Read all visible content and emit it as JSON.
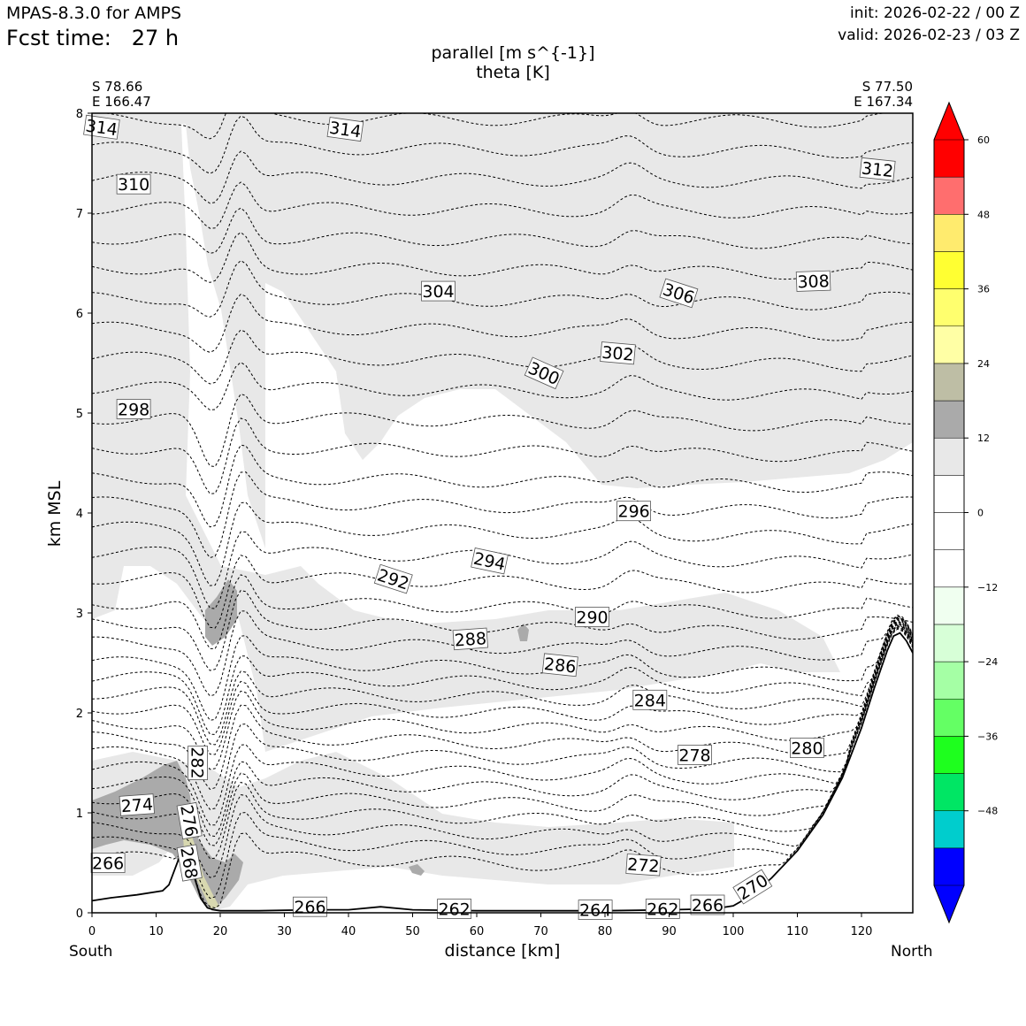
{
  "header": {
    "model": "MPAS-8.3.0 for AMPS",
    "fcst_time": "Fcst time:   27 h",
    "init": "init: 2026-02-22 / 00 Z",
    "valid": "valid: 2026-02-23 / 03 Z"
  },
  "chart_data": {
    "type": "cross-section",
    "title_line1": "parallel [m s^{-1}]",
    "title_line2": "theta [K]",
    "start_point": {
      "lat": "S 78.66",
      "lon": "E 166.47"
    },
    "end_point": {
      "lat": "S 77.50",
      "lon": "E 167.34"
    },
    "xlabel": "distance [km]",
    "ylabel": "km MSL",
    "xlim": [
      0,
      128
    ],
    "ylim": [
      0,
      8
    ],
    "x_ticks": [
      0,
      10,
      20,
      30,
      40,
      50,
      60,
      70,
      80,
      90,
      100,
      110,
      120
    ],
    "y_ticks": [
      0,
      1,
      2,
      3,
      4,
      5,
      6,
      7,
      8
    ],
    "left_end_label": "South",
    "right_end_label": "North",
    "terrain": {
      "x": [
        0,
        3,
        7,
        11,
        12,
        13,
        14,
        15,
        16,
        17,
        18,
        19,
        20,
        22,
        26,
        34,
        40,
        45,
        50,
        60,
        70,
        80,
        90,
        97,
        100,
        103,
        106,
        110,
        114,
        117,
        120,
        122,
        124,
        125,
        126,
        127,
        128
      ],
      "y": [
        0.12,
        0.15,
        0.18,
        0.22,
        0.28,
        0.45,
        0.62,
        0.55,
        0.35,
        0.14,
        0.05,
        0.03,
        0.02,
        0.02,
        0.02,
        0.03,
        0.03,
        0.06,
        0.03,
        0.02,
        0.02,
        0.02,
        0.03,
        0.04,
        0.07,
        0.18,
        0.35,
        0.62,
        0.98,
        1.35,
        1.85,
        2.25,
        2.62,
        2.77,
        2.8,
        2.72,
        2.6
      ]
    },
    "theta_contour_labels": [
      {
        "value": "314",
        "x": 1.5,
        "y": 7.86,
        "angle": 8
      },
      {
        "value": "314",
        "x": 39.5,
        "y": 7.84,
        "angle": 8
      },
      {
        "value": "312",
        "x": 122.5,
        "y": 7.44,
        "angle": 6
      },
      {
        "value": "310",
        "x": 6.5,
        "y": 7.29,
        "angle": 0
      },
      {
        "value": "308",
        "x": 112.5,
        "y": 6.32,
        "angle": -2
      },
      {
        "value": "306",
        "x": 91.5,
        "y": 6.2,
        "angle": 18
      },
      {
        "value": "304",
        "x": 54,
        "y": 6.22,
        "angle": 0
      },
      {
        "value": "302",
        "x": 82,
        "y": 5.6,
        "angle": 5
      },
      {
        "value": "300",
        "x": 70.5,
        "y": 5.4,
        "angle": 24
      },
      {
        "value": "298",
        "x": 6.5,
        "y": 5.04,
        "angle": 0
      },
      {
        "value": "296",
        "x": 84.5,
        "y": 4.02,
        "angle": 0
      },
      {
        "value": "294",
        "x": 62,
        "y": 3.52,
        "angle": 12
      },
      {
        "value": "292",
        "x": 47,
        "y": 3.34,
        "angle": 18
      },
      {
        "value": "290",
        "x": 78,
        "y": 2.96,
        "angle": 0
      },
      {
        "value": "288",
        "x": 59,
        "y": 2.74,
        "angle": -4
      },
      {
        "value": "286",
        "x": 73,
        "y": 2.48,
        "angle": 6
      },
      {
        "value": "284",
        "x": 87,
        "y": 2.13,
        "angle": 0
      },
      {
        "value": "282",
        "x": 16.5,
        "y": 1.5,
        "angle": 90
      },
      {
        "value": "280",
        "x": 111.5,
        "y": 1.65,
        "angle": 0
      },
      {
        "value": "278",
        "x": 94,
        "y": 1.58,
        "angle": 0
      },
      {
        "value": "276",
        "x": 15.2,
        "y": 0.92,
        "angle": 80
      },
      {
        "value": "274",
        "x": 7,
        "y": 1.08,
        "angle": -4
      },
      {
        "value": "272",
        "x": 86,
        "y": 0.48,
        "angle": 4
      },
      {
        "value": "270",
        "x": 103,
        "y": 0.26,
        "angle": -32
      },
      {
        "value": "268",
        "x": 15.2,
        "y": 0.5,
        "angle": 80
      },
      {
        "value": "266",
        "x": 2.5,
        "y": 0.5,
        "angle": 0
      },
      {
        "value": "266",
        "x": 34,
        "y": 0.06,
        "angle": 0
      },
      {
        "value": "266",
        "x": 96,
        "y": 0.08,
        "angle": 0
      },
      {
        "value": "264",
        "x": 78.5,
        "y": 0.03,
        "angle": 0
      },
      {
        "value": "262",
        "x": 56.5,
        "y": 0.04,
        "angle": 0
      },
      {
        "value": "262",
        "x": 89,
        "y": 0.04,
        "angle": 0
      }
    ],
    "colorbar": {
      "levels": [
        -60,
        -54,
        -48,
        -42,
        -36,
        -30,
        -24,
        -18,
        -12,
        -6,
        0,
        6,
        12,
        18,
        24,
        30,
        36,
        42,
        48,
        54,
        60
      ],
      "colors": [
        "#0000ff",
        "#00cdcd",
        "#00e664",
        "#1eff1e",
        "#64ff64",
        "#a5ffa5",
        "#d7ffd7",
        "#f0fff0",
        "#ffffff",
        "#ffffff",
        "#ffffff",
        "#e8e8e8",
        "#aaaaaa",
        "#bebea5",
        "#ffffa5",
        "#ffff6e",
        "#ffff32",
        "#ffeb6e",
        "#ff6e6e",
        "#ff0000"
      ],
      "tick_labels": [
        "−48",
        "−36",
        "−24",
        "−12",
        "0",
        "12",
        "24",
        "36",
        "48",
        "60"
      ],
      "tick_values": [
        -48,
        -36,
        -24,
        -12,
        0,
        12,
        24,
        36,
        48,
        60
      ],
      "extend": "both"
    }
  }
}
